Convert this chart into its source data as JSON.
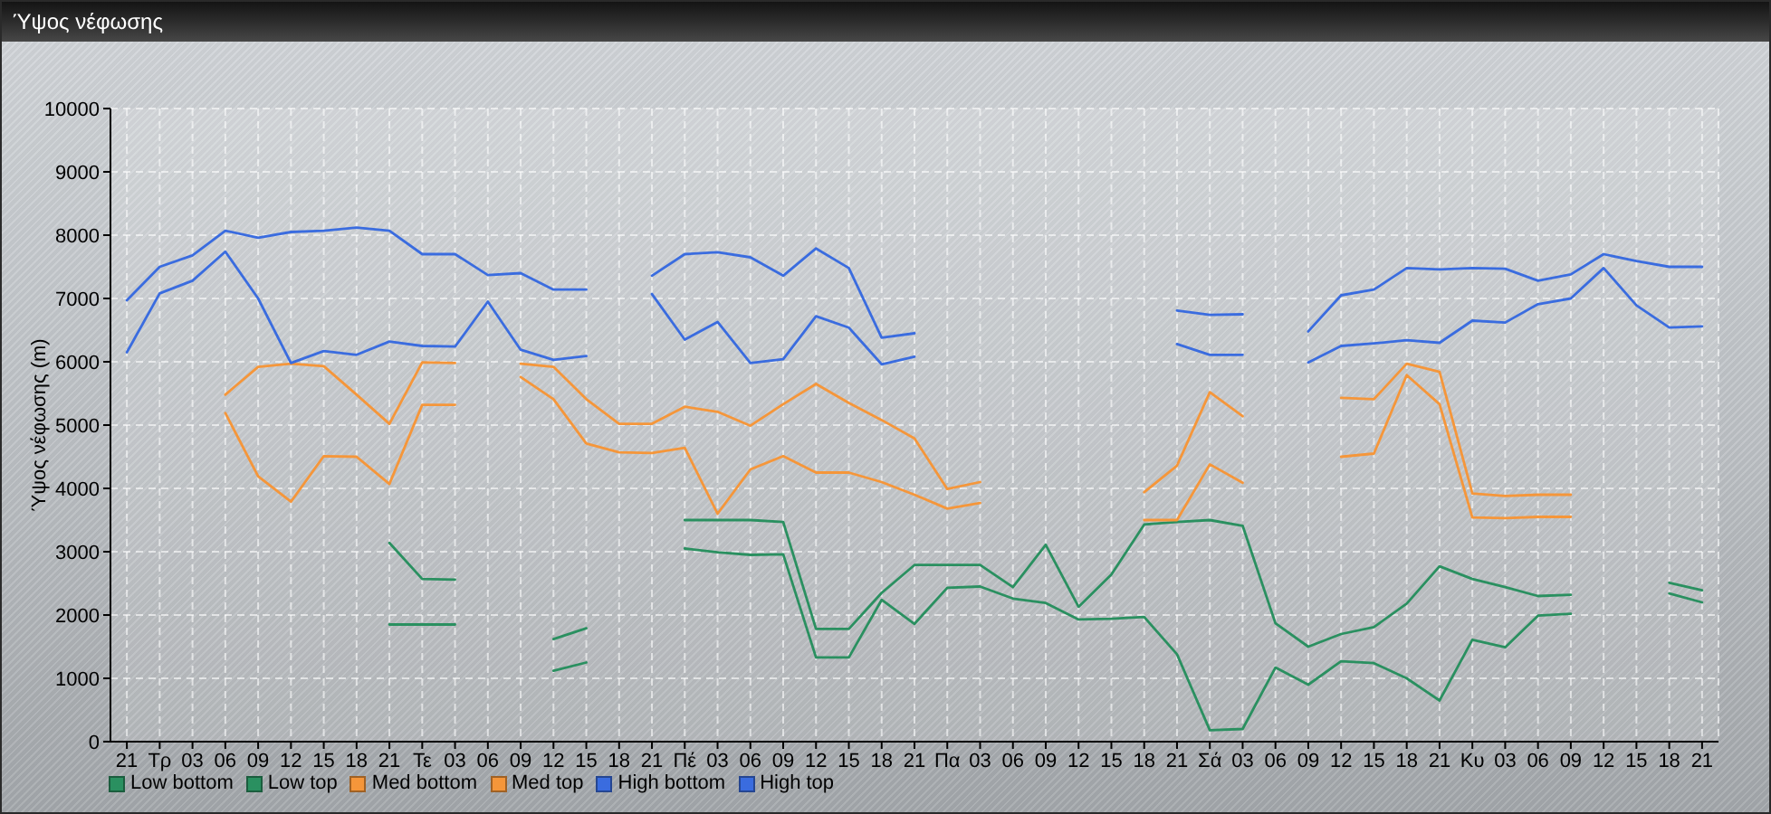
{
  "chart_data": {
    "type": "line",
    "title": "Ύψος νέφωσης",
    "ylabel": "Ύψος νέφωσης (m)",
    "categories": [
      "21",
      "Τρ",
      "03",
      "06",
      "09",
      "12",
      "15",
      "18",
      "21",
      "Τε",
      "03",
      "06",
      "09",
      "12",
      "15",
      "18",
      "21",
      "Πέ",
      "03",
      "06",
      "09",
      "12",
      "15",
      "18",
      "21",
      "Πα",
      "03",
      "06",
      "09",
      "12",
      "15",
      "18",
      "21",
      "Σά",
      "03",
      "06",
      "09",
      "12",
      "15",
      "18",
      "21",
      "Κυ",
      "03",
      "06",
      "09",
      "12",
      "15",
      "18",
      "21"
    ],
    "series": [
      {
        "name": "Low bottom",
        "color": "#2a9060",
        "values": [
          null,
          null,
          null,
          null,
          null,
          null,
          null,
          null,
          1850,
          1850,
          1850,
          null,
          null,
          1120,
          1250,
          null,
          null,
          3050,
          2990,
          2950,
          2960,
          1330,
          1330,
          2240,
          1860,
          2430,
          2450,
          2260,
          2190,
          1930,
          1940,
          1970,
          1380,
          180,
          200,
          1170,
          900,
          1270,
          1240,
          1000,
          650,
          1610,
          1490,
          1990,
          2020,
          null,
          null,
          2340,
          2200
        ]
      },
      {
        "name": "Low top",
        "color": "#2a9060",
        "values": [
          null,
          null,
          null,
          null,
          null,
          null,
          null,
          null,
          3140,
          2570,
          2560,
          null,
          null,
          1620,
          1790,
          null,
          null,
          3500,
          3500,
          3500,
          3470,
          1780,
          1780,
          2350,
          2790,
          2790,
          2790,
          2440,
          3110,
          2130,
          2640,
          3430,
          3470,
          3500,
          3410,
          1870,
          1500,
          1700,
          1810,
          2180,
          2770,
          2570,
          2440,
          2300,
          2320,
          null,
          null,
          2510,
          2390
        ]
      },
      {
        "name": "Med bottom",
        "color": "#f5963a",
        "values": [
          null,
          null,
          null,
          5190,
          4190,
          3790,
          4510,
          4500,
          4070,
          5320,
          5320,
          null,
          5760,
          5410,
          4710,
          4570,
          4560,
          4640,
          3600,
          4300,
          4510,
          4250,
          4250,
          4100,
          3900,
          3680,
          3770,
          null,
          null,
          null,
          null,
          3500,
          3500,
          4380,
          4090,
          null,
          null,
          4500,
          4550,
          5790,
          5330,
          3540,
          3530,
          3550,
          3550,
          null,
          null,
          null,
          null
        ]
      },
      {
        "name": "Med top",
        "color": "#f5963a",
        "values": [
          null,
          null,
          null,
          5480,
          5920,
          5970,
          5930,
          5480,
          5020,
          5990,
          5980,
          null,
          5970,
          5920,
          5410,
          5020,
          5020,
          5290,
          5210,
          4990,
          5330,
          5650,
          5350,
          5080,
          4790,
          3990,
          4100,
          null,
          null,
          null,
          null,
          3940,
          4360,
          5520,
          5140,
          null,
          null,
          5430,
          5410,
          5970,
          5840,
          3920,
          3880,
          3900,
          3900,
          null,
          null,
          null,
          null
        ]
      },
      {
        "name": "High bottom",
        "color": "#3a6cdf",
        "values": [
          6150,
          7080,
          7280,
          7740,
          7000,
          5980,
          6170,
          6110,
          6320,
          6250,
          6240,
          6950,
          6190,
          6030,
          6090,
          null,
          7070,
          6350,
          6630,
          5980,
          6040,
          6720,
          6540,
          5960,
          6080,
          null,
          null,
          null,
          null,
          null,
          null,
          null,
          6280,
          6110,
          6110,
          null,
          5990,
          6250,
          6290,
          6340,
          6300,
          6650,
          6620,
          6910,
          7000,
          7480,
          6890,
          6540,
          6560
        ]
      },
      {
        "name": "High top",
        "color": "#3a6cdf",
        "values": [
          6970,
          7500,
          7680,
          8070,
          7960,
          8050,
          8070,
          8120,
          8070,
          7700,
          7700,
          7370,
          7400,
          7140,
          7140,
          null,
          7360,
          7700,
          7730,
          7650,
          7360,
          7790,
          7480,
          6380,
          6450,
          null,
          null,
          null,
          null,
          null,
          null,
          null,
          6810,
          6740,
          6750,
          null,
          6480,
          7050,
          7140,
          7480,
          7460,
          7480,
          7470,
          7280,
          7380,
          7700,
          7590,
          7500,
          7500
        ]
      }
    ],
    "ylim": [
      0,
      10000
    ],
    "yticks": [
      0,
      1000,
      2000,
      3000,
      4000,
      5000,
      6000,
      7000,
      8000,
      9000,
      10000
    ],
    "grid": true,
    "legend": "bottom left",
    "marker": "none",
    "line_style": "solid"
  }
}
